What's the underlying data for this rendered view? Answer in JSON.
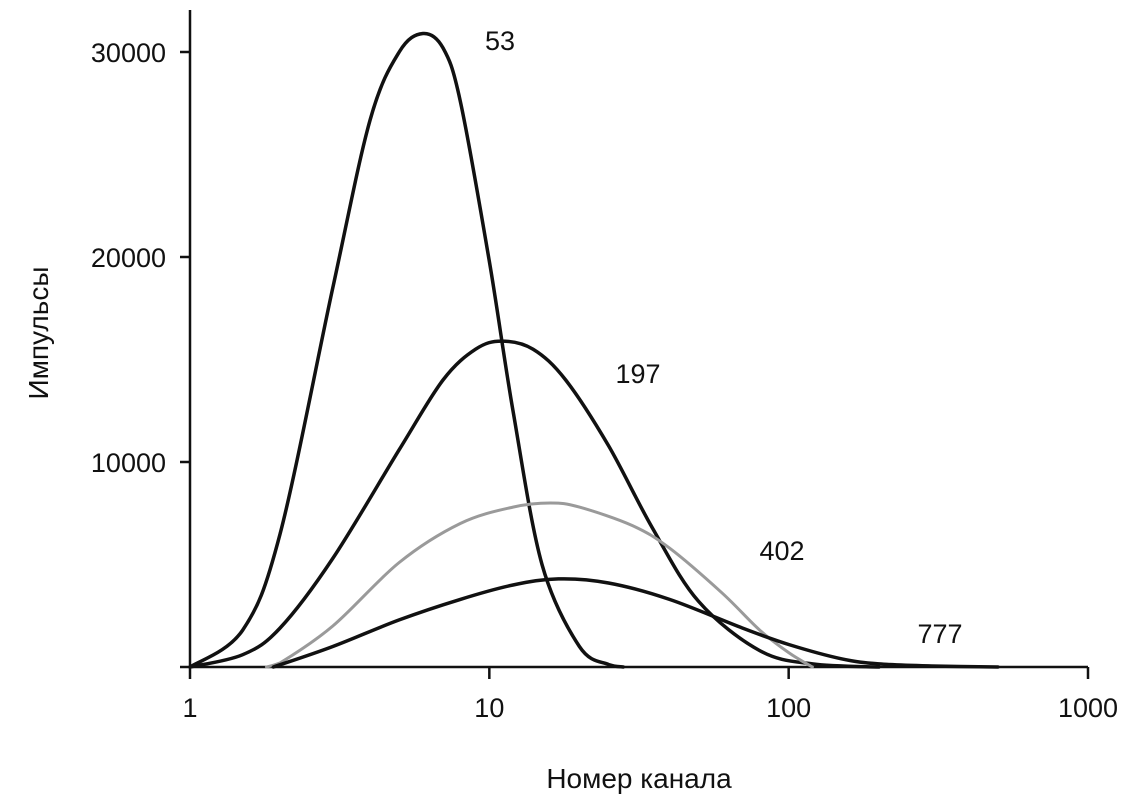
{
  "chart_data": {
    "type": "line",
    "xlabel": "Номер канала",
    "ylabel": "Импульсы",
    "x_scale": "log",
    "xlim": [
      1,
      1000
    ],
    "ylim": [
      0,
      32000
    ],
    "x_ticks": [
      1,
      10,
      100,
      1000
    ],
    "x_tick_labels": [
      "1",
      "10",
      "100",
      "1000"
    ],
    "y_ticks": [
      10000,
      20000,
      30000
    ],
    "y_tick_labels": [
      "10000",
      "20000",
      "30000"
    ],
    "grid": false,
    "series": [
      {
        "name": "53",
        "color": "#111111",
        "x": [
          1,
          1.5,
          2,
          3,
          4,
          5,
          6,
          7,
          8,
          10,
          12,
          15,
          20,
          25,
          28
        ],
        "y": [
          0,
          1800,
          6500,
          18500,
          26700,
          30000,
          30900,
          30200,
          27600,
          19800,
          12500,
          5000,
          1000,
          120,
          0
        ]
      },
      {
        "name": "197",
        "color": "#111111",
        "x": [
          1,
          1.5,
          2,
          3,
          5,
          7,
          9,
          11,
          14,
          18,
          25,
          35,
          50,
          80,
          120,
          200
        ],
        "y": [
          0,
          600,
          1900,
          5300,
          10600,
          14000,
          15500,
          15900,
          15500,
          14000,
          10800,
          6800,
          3200,
          800,
          150,
          0
        ]
      },
      {
        "name": "402",
        "color": "#9a9a9a",
        "x": [
          1.8,
          2,
          3,
          5,
          8,
          12,
          16,
          20,
          30,
          40,
          60,
          80,
          100,
          120
        ],
        "y": [
          0,
          200,
          2000,
          5100,
          7000,
          7800,
          8000,
          7800,
          6900,
          5800,
          3600,
          1800,
          700,
          0
        ]
      },
      {
        "name": "777",
        "color": "#111111",
        "x": [
          1.9,
          3,
          5,
          8,
          12,
          17,
          25,
          40,
          70,
          100,
          150,
          200,
          300,
          500
        ],
        "y": [
          0,
          1000,
          2300,
          3300,
          4000,
          4300,
          4100,
          3300,
          1900,
          1100,
          400,
          150,
          50,
          0
        ]
      }
    ]
  }
}
